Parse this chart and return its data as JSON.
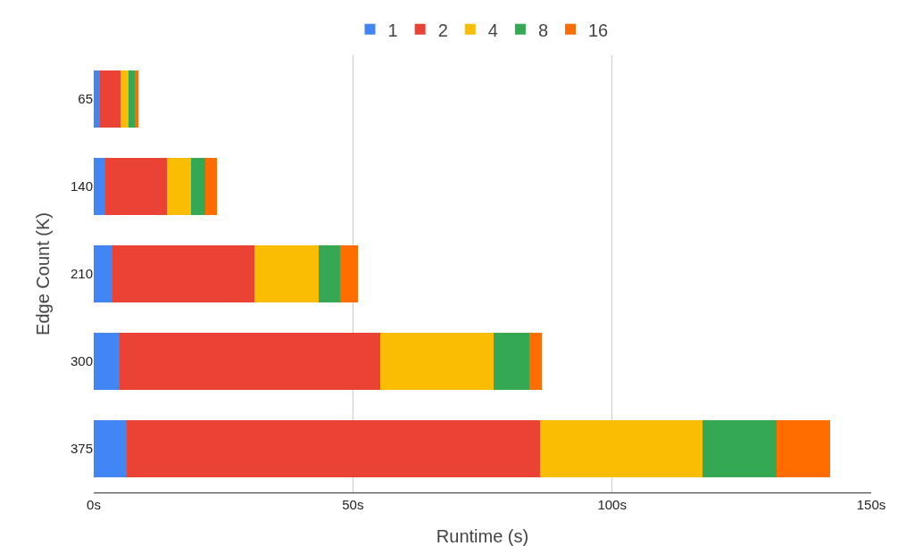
{
  "chart_data": {
    "type": "bar",
    "orientation": "horizontal",
    "stacked": true,
    "xlabel": "Runtime (s)",
    "ylabel": "Edge Count (K)",
    "categories": [
      "65",
      "140",
      "210",
      "300",
      "375"
    ],
    "series": [
      {
        "name": "1",
        "color": "#4285f4",
        "values": [
          1.2,
          2.2,
          3.6,
          5.0,
          6.4
        ]
      },
      {
        "name": "2",
        "color": "#ea4335",
        "values": [
          4.0,
          11.9,
          27.4,
          50.2,
          79.7
        ]
      },
      {
        "name": "4",
        "color": "#fbbc04",
        "values": [
          1.5,
          4.7,
          12.4,
          21.9,
          31.4
        ]
      },
      {
        "name": "8",
        "color": "#34a853",
        "values": [
          1.2,
          2.8,
          4.1,
          6.9,
          14.3
        ]
      },
      {
        "name": "16",
        "color": "#ff6d01",
        "values": [
          0.7,
          2.1,
          3.4,
          2.4,
          10.2
        ]
      }
    ],
    "xlim": [
      0,
      150
    ],
    "xticks": [
      {
        "value": 0,
        "label": "0s"
      },
      {
        "value": 50,
        "label": "50s"
      },
      {
        "value": 100,
        "label": "100s"
      },
      {
        "value": 150,
        "label": "150s"
      }
    ],
    "grid": "x",
    "legend": "top"
  }
}
